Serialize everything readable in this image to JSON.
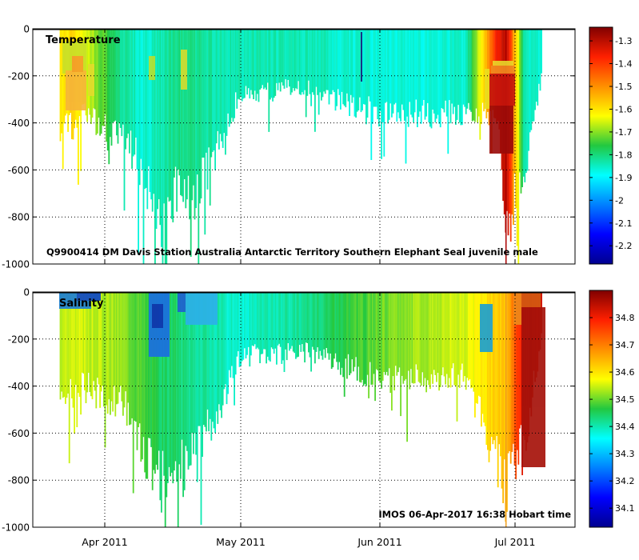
{
  "chart_data": [
    {
      "type": "heatmap",
      "title": "Temperature",
      "annotation": "Q9900414 DM Davis Station Australia Antarctic Territory Southern Elephant Seal juvenile male",
      "ylabel": "",
      "xlabel": "",
      "ylim": [
        -1000,
        0
      ],
      "y_ticks": [
        "0",
        "-200",
        "-400",
        "-600",
        "-800",
        "-1000"
      ],
      "x_ticks": [
        "Apr 2011",
        "May 2011",
        "Jun 2011",
        "Jul 2011"
      ],
      "grid": true,
      "colorbar": {
        "range": [
          -2.28,
          -1.24
        ],
        "tick_labels": [
          "-1.3",
          "-1.4",
          "-1.5",
          "-1.6",
          "-1.7",
          "-1.8",
          "-1.9",
          "-2",
          "-2.1",
          "-2.2"
        ]
      },
      "profiles": [
        {
          "day": "2011-03-22",
          "max_depth": 520,
          "value": -1.62
        },
        {
          "day": "2011-03-25",
          "max_depth": 480,
          "value": -1.58
        },
        {
          "day": "2011-03-28",
          "max_depth": 420,
          "value": -1.66
        },
        {
          "day": "2011-04-01",
          "max_depth": 520,
          "value": -1.74
        },
        {
          "day": "2011-04-05",
          "max_depth": 560,
          "value": -1.82
        },
        {
          "day": "2011-04-09",
          "max_depth": 680,
          "value": -1.86
        },
        {
          "day": "2011-04-13",
          "max_depth": 950,
          "value": -1.84
        },
        {
          "day": "2011-04-17",
          "max_depth": 780,
          "value": -1.8
        },
        {
          "day": "2011-04-21",
          "max_depth": 840,
          "value": -1.82
        },
        {
          "day": "2011-05-01",
          "max_depth": 320,
          "value": -1.84
        },
        {
          "day": "2011-05-15",
          "max_depth": 300,
          "value": -1.84
        },
        {
          "day": "2011-06-01",
          "max_depth": 430,
          "value": -1.87
        },
        {
          "day": "2011-06-20",
          "max_depth": 430,
          "value": -1.86
        },
        {
          "day": "2011-06-27",
          "max_depth": 420,
          "value": -1.35
        },
        {
          "day": "2011-06-29",
          "max_depth": 1000,
          "value": -1.3
        },
        {
          "day": "2011-07-03",
          "max_depth": 690,
          "value": -1.85
        },
        {
          "day": "2011-07-07",
          "max_depth": 200,
          "value": -1.86
        }
      ]
    },
    {
      "type": "heatmap",
      "title": "Salinity",
      "annotation": "IMOS 06-Apr-2017 16:38 Hobart time",
      "ylabel": "",
      "xlabel": "",
      "ylim": [
        -1000,
        0
      ],
      "y_ticks": [
        "0",
        "-200",
        "-400",
        "-600",
        "-800",
        "-1000"
      ],
      "x_ticks": [
        "Apr 2011",
        "May 2011",
        "Jun 2011",
        "Jul 2011"
      ],
      "grid": true,
      "colorbar": {
        "range": [
          34.03,
          34.9
        ],
        "tick_labels": [
          "34.8",
          "34.7",
          "34.6",
          "34.5",
          "34.4",
          "34.3",
          "34.2",
          "34.1"
        ]
      },
      "profiles": [
        {
          "day": "2011-03-22",
          "max_depth": 520,
          "value": 34.55
        },
        {
          "day": "2011-03-28",
          "max_depth": 480,
          "value": 34.55
        },
        {
          "day": "2011-04-05",
          "max_depth": 560,
          "value": 34.52
        },
        {
          "day": "2011-04-13",
          "max_depth": 950,
          "value": 34.45
        },
        {
          "day": "2011-04-21",
          "max_depth": 840,
          "value": 34.42
        },
        {
          "day": "2011-05-01",
          "max_depth": 320,
          "value": 34.38
        },
        {
          "day": "2011-05-15",
          "max_depth": 300,
          "value": 34.42
        },
        {
          "day": "2011-06-01",
          "max_depth": 430,
          "value": 34.5
        },
        {
          "day": "2011-06-20",
          "max_depth": 430,
          "value": 34.56
        },
        {
          "day": "2011-06-29",
          "max_depth": 1000,
          "value": 34.64
        },
        {
          "day": "2011-07-03",
          "max_depth": 750,
          "value": 34.85
        },
        {
          "day": "2011-07-07",
          "max_depth": 200,
          "value": 34.83
        }
      ]
    }
  ]
}
